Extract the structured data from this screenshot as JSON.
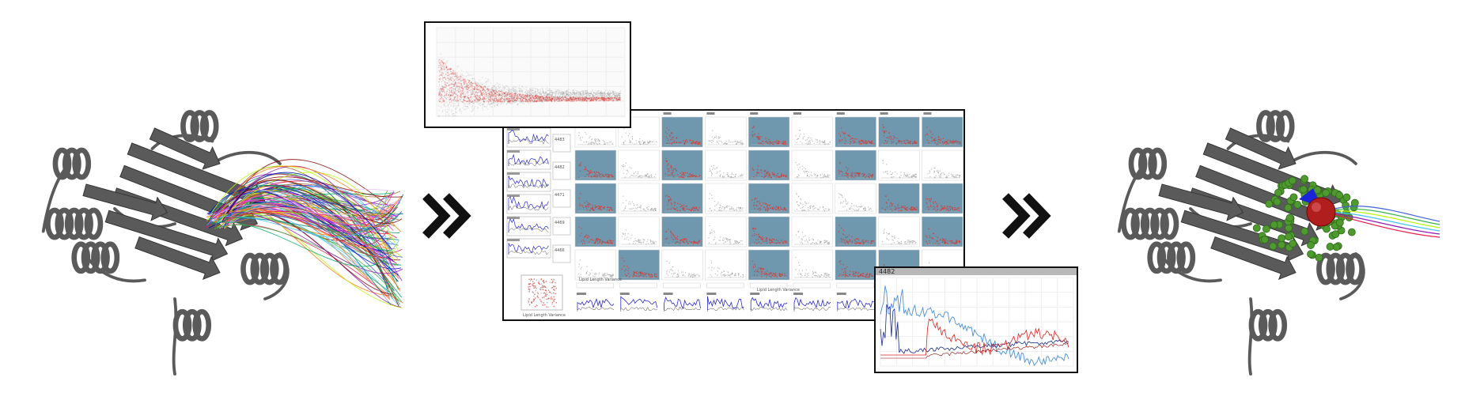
{
  "colors": {
    "protein": "#5a5a5a",
    "tile_highlight": "#6f97ad",
    "red_density": "#e0322a",
    "gray_density": "#8a8a8a",
    "blue_line": "#2a2ad0",
    "arrow": "#111111",
    "cavity_atoms": "#4e9a2e",
    "ligand_sphere": "#b01e1e"
  },
  "icons": [
    "double-chevron-right-icon",
    "double-chevron-right-icon"
  ],
  "stages": {
    "input_tunnels": {
      "type": "protein-with-tunnel-bundle",
      "tunnel_count": 120
    },
    "exploration_view": {
      "grid": {
        "rows": 5,
        "cols": 9
      },
      "highlighted_tiles": [
        [
          0,
          2
        ],
        [
          0,
          4
        ],
        [
          0,
          6
        ],
        [
          0,
          7
        ],
        [
          0,
          8
        ],
        [
          1,
          0
        ],
        [
          1,
          2
        ],
        [
          1,
          4
        ],
        [
          1,
          6
        ],
        [
          2,
          0
        ],
        [
          2,
          2
        ],
        [
          2,
          4
        ],
        [
          2,
          7
        ],
        [
          2,
          8
        ],
        [
          3,
          0
        ],
        [
          3,
          2
        ],
        [
          3,
          4
        ],
        [
          3,
          6
        ],
        [
          3,
          8
        ],
        [
          4,
          1
        ],
        [
          4,
          4
        ],
        [
          4,
          6
        ],
        [
          4,
          7
        ]
      ],
      "row_labels": [
        "4483",
        "4482",
        "4471",
        "4469",
        "4466"
      ],
      "axis_caption": "Lipid Length Variance",
      "scatter_caption": "Lipid Length Variance",
      "bottom_labels": [
        "4482",
        "4483",
        "4471",
        "4469",
        "4466",
        "4464",
        "4462"
      ]
    },
    "detail_chart": {
      "title": "4482"
    },
    "result": {
      "type": "protein-with-selected-tunnels-and-ligand",
      "tunnel_count": 6
    }
  }
}
